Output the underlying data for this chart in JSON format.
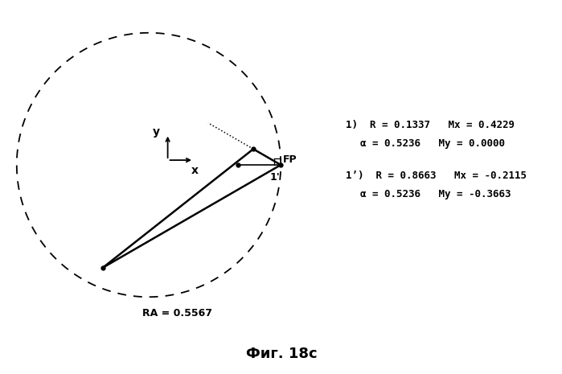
{
  "title": "Фиг. 18с",
  "RA": 0.5567,
  "alpha_rad": 0.5236,
  "R1": 0.1337,
  "R1p": 0.8663,
  "Mx1": 0.4229,
  "My1": 0.0,
  "Mx1p": -0.2115,
  "My1p": -0.3663,
  "background_color": "#ffffff",
  "line_color": "#000000",
  "ann1_line1": "1)  R = 0.1337   Mx = 0.4229",
  "ann1_line2": "    α = 0.5236   My = 0.0000",
  "ann2_line1": "1’)  R = 0.8663   Mx = -0.2115",
  "ann2_line2": "    α = 0.5236   My = -0.3663"
}
